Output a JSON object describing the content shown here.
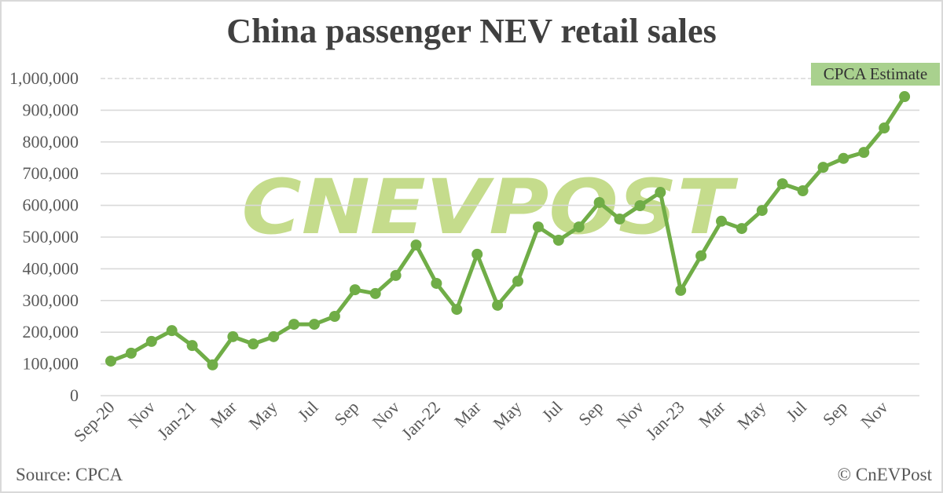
{
  "title": "China passenger NEV retail sales",
  "source": "Source: CPCA",
  "copyright": "© CnEVPost",
  "watermark": "CNEVPOST",
  "annotation": "CPCA Estimate",
  "colors": {
    "line": "#70ad47",
    "watermark": "#c5dc8c",
    "annotation_bg": "#a9d18e",
    "grid": "#d9d9d9",
    "text": "#404040"
  },
  "chart_data": {
    "type": "line",
    "title": "China passenger NEV retail sales",
    "xlabel": "",
    "ylabel": "",
    "ylim": [
      0,
      1000000
    ],
    "yticks": [
      0,
      100000,
      200000,
      300000,
      400000,
      500000,
      600000,
      700000,
      800000,
      900000,
      1000000
    ],
    "ytick_labels": [
      "0",
      "100,000",
      "200,000",
      "300,000",
      "400,000",
      "500,000",
      "600,000",
      "700,000",
      "800,000",
      "900,000",
      "1,000,000"
    ],
    "grid": true,
    "legend": "none",
    "categories": [
      "Sep-20",
      "Oct-20",
      "Nov-20",
      "Dec-20",
      "Jan-21",
      "Feb-21",
      "Mar-21",
      "Apr-21",
      "May-21",
      "Jun-21",
      "Jul-21",
      "Aug-21",
      "Sep-21",
      "Oct-21",
      "Nov-21",
      "Dec-21",
      "Jan-22",
      "Feb-22",
      "Mar-22",
      "Apr-22",
      "May-22",
      "Jun-22",
      "Jul-22",
      "Aug-22",
      "Sep-22",
      "Oct-22",
      "Nov-22",
      "Dec-22",
      "Jan-23",
      "Feb-23",
      "Mar-23",
      "Apr-23",
      "May-23",
      "Jun-23",
      "Jul-23",
      "Aug-23",
      "Sep-23",
      "Oct-23",
      "Nov-23",
      "Dec-23"
    ],
    "xtick_labels": [
      "Sep-20",
      "",
      "Nov",
      "",
      "Jan-21",
      "",
      "Mar",
      "",
      "May",
      "",
      "Jul",
      "",
      "Sep",
      "",
      "Nov",
      "",
      "Jan-22",
      "",
      "Mar",
      "",
      "May",
      "",
      "Jul",
      "",
      "Sep",
      "",
      "Nov",
      "",
      "Jan-23",
      "",
      "Mar",
      "",
      "May",
      "",
      "Jul",
      "",
      "Sep",
      "",
      "Nov",
      ""
    ],
    "series": [
      {
        "name": "NEV retail sales",
        "values": [
          109000,
          134000,
          171000,
          205000,
          158000,
          97000,
          186000,
          163000,
          186000,
          225000,
          225000,
          250000,
          334000,
          322000,
          379000,
          475000,
          354000,
          272000,
          446000,
          285000,
          361000,
          532000,
          490000,
          532000,
          609000,
          557000,
          599000,
          641000,
          332000,
          441000,
          550000,
          527000,
          584000,
          668000,
          646000,
          720000,
          748000,
          767000,
          844000,
          943000
        ]
      }
    ],
    "annotations": [
      {
        "text": "CPCA Estimate",
        "target": "Dec-23"
      }
    ]
  }
}
